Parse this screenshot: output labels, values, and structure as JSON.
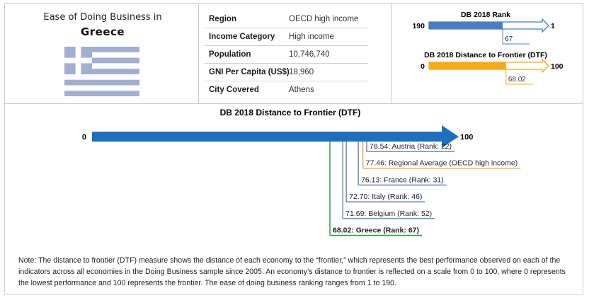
{
  "profile": {
    "title": "Ease of Doing Business in",
    "country": "Greece",
    "flag_colors": {
      "blue": "#A3AFCF",
      "white": "#ffffff"
    }
  },
  "info": [
    {
      "label": "Region",
      "value": "OECD high income"
    },
    {
      "label": "Income Category",
      "value": "High income"
    },
    {
      "label": "Population",
      "value": "10,746,740"
    },
    {
      "label": "GNI Per Capita (US$)",
      "value": "18,960"
    },
    {
      "label": "City Covered",
      "value": "Athens"
    }
  ],
  "chart_data": [
    {
      "type": "bar",
      "id": "rank-mini",
      "title": "DB 2018 Rank",
      "start_label": "190",
      "end_label": "1",
      "range": [
        190,
        1
      ],
      "value": 67,
      "value_label": "67",
      "color": "#4A7EC1"
    },
    {
      "type": "bar",
      "id": "dtf-mini",
      "title": "DB 2018 Distance to Frontier (DTF)",
      "start_label": "0",
      "end_label": "100",
      "range": [
        0,
        100
      ],
      "value": 68.02,
      "value_label": "68.02",
      "color": "#F6A81C"
    },
    {
      "type": "bar",
      "id": "dtf-comparison",
      "title": "DB 2018 Distance to Frontier (DTF)",
      "start_label": "0",
      "end_label": "100",
      "range": [
        0,
        100
      ],
      "arrow_color": "#1F6FBF",
      "points": [
        {
          "name": "Austria",
          "value": 78.54,
          "label": "78.54: Austria (Rank: 22)",
          "color": "#4A6FA5",
          "bold": false
        },
        {
          "name": "Regional Average",
          "value": 77.46,
          "label": "77.46: Regional Average (OECD high income)",
          "color": "#E8971E",
          "bold": false
        },
        {
          "name": "France",
          "value": 76.13,
          "label": "76.13: France (Rank: 31)",
          "color": "#4A6FA5",
          "bold": false
        },
        {
          "name": "Italy",
          "value": 72.7,
          "label": "72.70: Italy (Rank: 46)",
          "color": "#4A6FA5",
          "bold": false
        },
        {
          "name": "Belgium",
          "value": 71.69,
          "label": "71.69: Belgium (Rank: 52)",
          "color": "#4A6FA5",
          "bold": false
        },
        {
          "name": "Greece",
          "value": 68.02,
          "label": "68.02: Greece (Rank: 67)",
          "color": "#2E9A46",
          "bold": true
        }
      ]
    }
  ],
  "note": "Note: The distance to frontier (DTF) measure shows the distance of each economy to the “frontier,” which represents the best performance observed on each of the indicators across all economies in the Doing Business sample since 2005. An economy’s distance to frontier is reflected on a scale from 0 to 100, where 0 represents the lowest performance and 100 represents the frontier. The ease of doing business ranking ranges from 1 to 190."
}
